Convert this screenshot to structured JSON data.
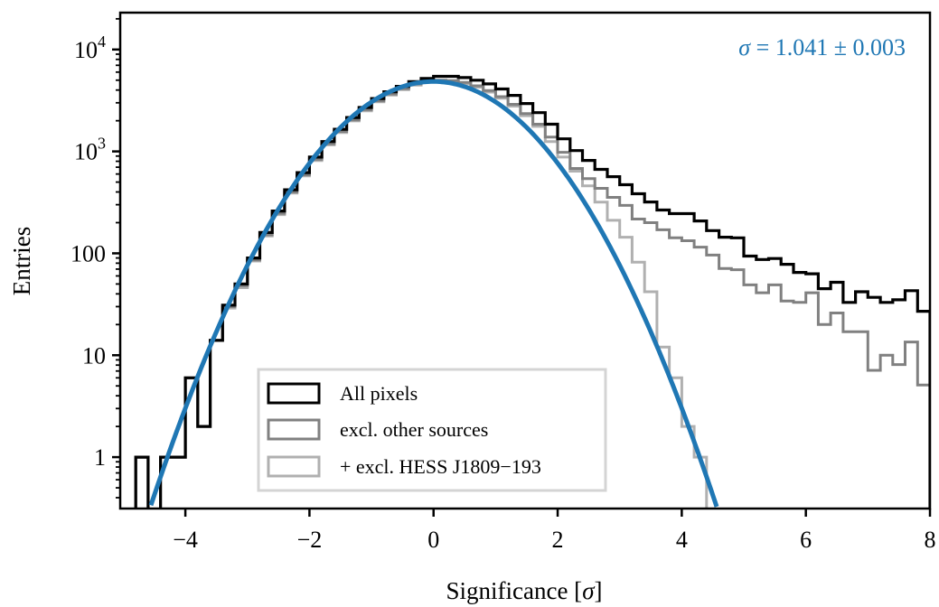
{
  "chart_data": {
    "type": "histogram",
    "xlabel": "Significance [σ]",
    "xlabel_parts": {
      "text": "Significance [",
      "symbol": "σ",
      "close": "]"
    },
    "ylabel": "Entries",
    "xlim": [
      -5.05,
      8.0
    ],
    "ylim": [
      0.313,
      23000
    ],
    "yscale": "log",
    "grid": false,
    "x_ticks": [
      -4,
      -2,
      0,
      2,
      4,
      6,
      8
    ],
    "x_tick_labels": [
      "−4",
      "−2",
      "0",
      "2",
      "4",
      "6",
      "8"
    ],
    "y_ticks": [
      {
        "value": 1,
        "label": "1"
      },
      {
        "value": 10,
        "label": "10"
      },
      {
        "value": 100,
        "label": "100"
      },
      {
        "value": 1000,
        "label": "10",
        "exp": "3"
      },
      {
        "value": 10000,
        "label": "10",
        "exp": "4"
      }
    ],
    "bin_edges_start": -4.8,
    "bin_width": 0.2,
    "series": [
      {
        "name": "All pixels",
        "color": "#000000",
        "values": [
          1,
          0,
          1,
          1,
          6,
          2,
          14,
          31,
          50,
          90,
          160,
          260,
          420,
          620,
          880,
          1250,
          1650,
          2150,
          2700,
          3300,
          3850,
          4350,
          4850,
          5200,
          5450,
          5450,
          5300,
          5000,
          4600,
          4100,
          3550,
          2950,
          2400,
          1850,
          1330,
          1020,
          816,
          666,
          565,
          471,
          384,
          319,
          266,
          245,
          245,
          208,
          167,
          144,
          142,
          94,
          87,
          89,
          78,
          65,
          63,
          45,
          52,
          33,
          42,
          37,
          33,
          35,
          43,
          27
        ]
      },
      {
        "name": "excl. other sources",
        "color": "#808080",
        "values": [
          1,
          0,
          1,
          1,
          6,
          2,
          14,
          30,
          48,
          86,
          152,
          247,
          400,
          590,
          836,
          1190,
          1570,
          2040,
          2570,
          3140,
          3660,
          4130,
          4600,
          4900,
          5000,
          4950,
          4750,
          4400,
          3950,
          3450,
          2900,
          2350,
          1850,
          1380,
          980,
          680,
          540,
          434,
          354,
          295,
          217,
          200,
          170,
          142,
          133,
          115,
          96,
          71,
          69,
          49,
          41,
          49,
          34,
          33,
          41,
          20,
          26,
          17,
          17,
          7.1,
          10,
          8.1,
          13.5,
          5.1
        ]
      },
      {
        "name": "+ excl. HESS J1809−193",
        "color": "#b0b0b0",
        "values": [
          1,
          0,
          1,
          1,
          6,
          2,
          14,
          29,
          46,
          84,
          148,
          240,
          390,
          575,
          815,
          1160,
          1530,
          1990,
          2500,
          3060,
          3570,
          4030,
          4480,
          4780,
          4870,
          4820,
          4620,
          4270,
          3820,
          3320,
          2780,
          2240,
          1760,
          1250,
          880,
          640,
          460,
          318,
          211,
          144,
          82,
          42,
          12,
          6,
          2,
          1,
          0,
          0,
          0,
          0,
          0,
          0,
          0,
          0,
          0,
          0,
          0,
          0,
          0,
          0,
          0,
          0,
          0,
          0
        ]
      }
    ],
    "fit": {
      "type": "gaussian",
      "amplitude": 4850,
      "mean": 0,
      "sigma": 1.041,
      "color": "#1f77b4"
    },
    "annotation": {
      "symbol": "σ",
      "text": " = 1.041 ± 0.003",
      "color": "#1f77b4",
      "position": "top-right"
    },
    "legend": {
      "position": "lower-left",
      "entries": [
        "All pixels",
        "excl. other sources",
        "+ excl. HESS J1809−193"
      ]
    }
  }
}
